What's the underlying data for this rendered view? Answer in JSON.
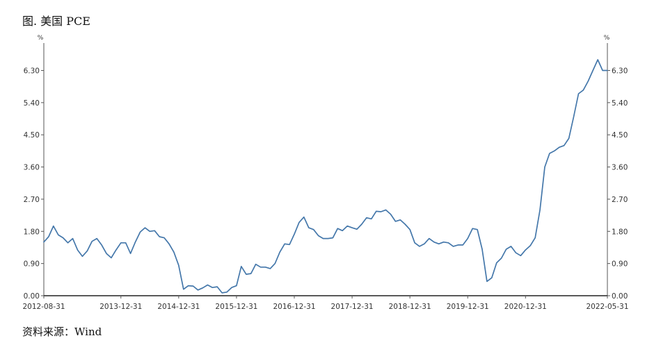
{
  "title": "图. 美国 PCE",
  "source": "资料来源：Wind",
  "chart_data": {
    "type": "line",
    "y_unit_left": "%",
    "y_unit_right": "%",
    "ylim": [
      0,
      6.3
    ],
    "y_ticks": [
      "0.00",
      "0.90",
      "1.80",
      "2.70",
      "3.60",
      "4.50",
      "5.40",
      "6.30"
    ],
    "x_tick_labels": [
      "2012-08-31",
      "2013-12-31",
      "2014-12-31",
      "2015-12-31",
      "2016-12-31",
      "2017-12-31",
      "2018-12-31",
      "2019-12-31",
      "2020-12-31",
      "2022-05-31"
    ],
    "x_range": [
      "2012-08",
      "2022-05"
    ],
    "grid": false,
    "color": "#4477aa",
    "series": [
      {
        "frequency": "monthly",
        "start": "2012-08",
        "values": [
          1.5,
          1.65,
          1.95,
          1.7,
          1.62,
          1.48,
          1.6,
          1.28,
          1.1,
          1.25,
          1.52,
          1.6,
          1.42,
          1.18,
          1.06,
          1.28,
          1.48,
          1.48,
          1.18,
          1.5,
          1.78,
          1.9,
          1.8,
          1.82,
          1.65,
          1.62,
          1.45,
          1.22,
          0.85,
          0.18,
          0.28,
          0.27,
          0.16,
          0.22,
          0.3,
          0.23,
          0.25,
          0.08,
          0.1,
          0.23,
          0.28,
          0.82,
          0.6,
          0.62,
          0.88,
          0.8,
          0.8,
          0.76,
          0.9,
          1.22,
          1.45,
          1.43,
          1.72,
          2.05,
          2.2,
          1.9,
          1.85,
          1.68,
          1.6,
          1.6,
          1.62,
          1.88,
          1.82,
          1.95,
          1.9,
          1.86,
          2.0,
          2.18,
          2.15,
          2.36,
          2.35,
          2.4,
          2.28,
          2.08,
          2.12,
          2.0,
          1.85,
          1.48,
          1.38,
          1.45,
          1.6,
          1.5,
          1.45,
          1.5,
          1.48,
          1.38,
          1.42,
          1.42,
          1.6,
          1.88,
          1.85,
          1.3,
          0.4,
          0.5,
          0.92,
          1.05,
          1.3,
          1.38,
          1.2,
          1.12,
          1.28,
          1.4,
          1.62,
          2.4,
          3.6,
          3.98,
          4.05,
          4.15,
          4.2,
          4.4,
          5.0,
          5.65,
          5.75,
          6.0,
          6.3,
          6.6,
          6.3,
          6.3
        ]
      }
    ]
  }
}
